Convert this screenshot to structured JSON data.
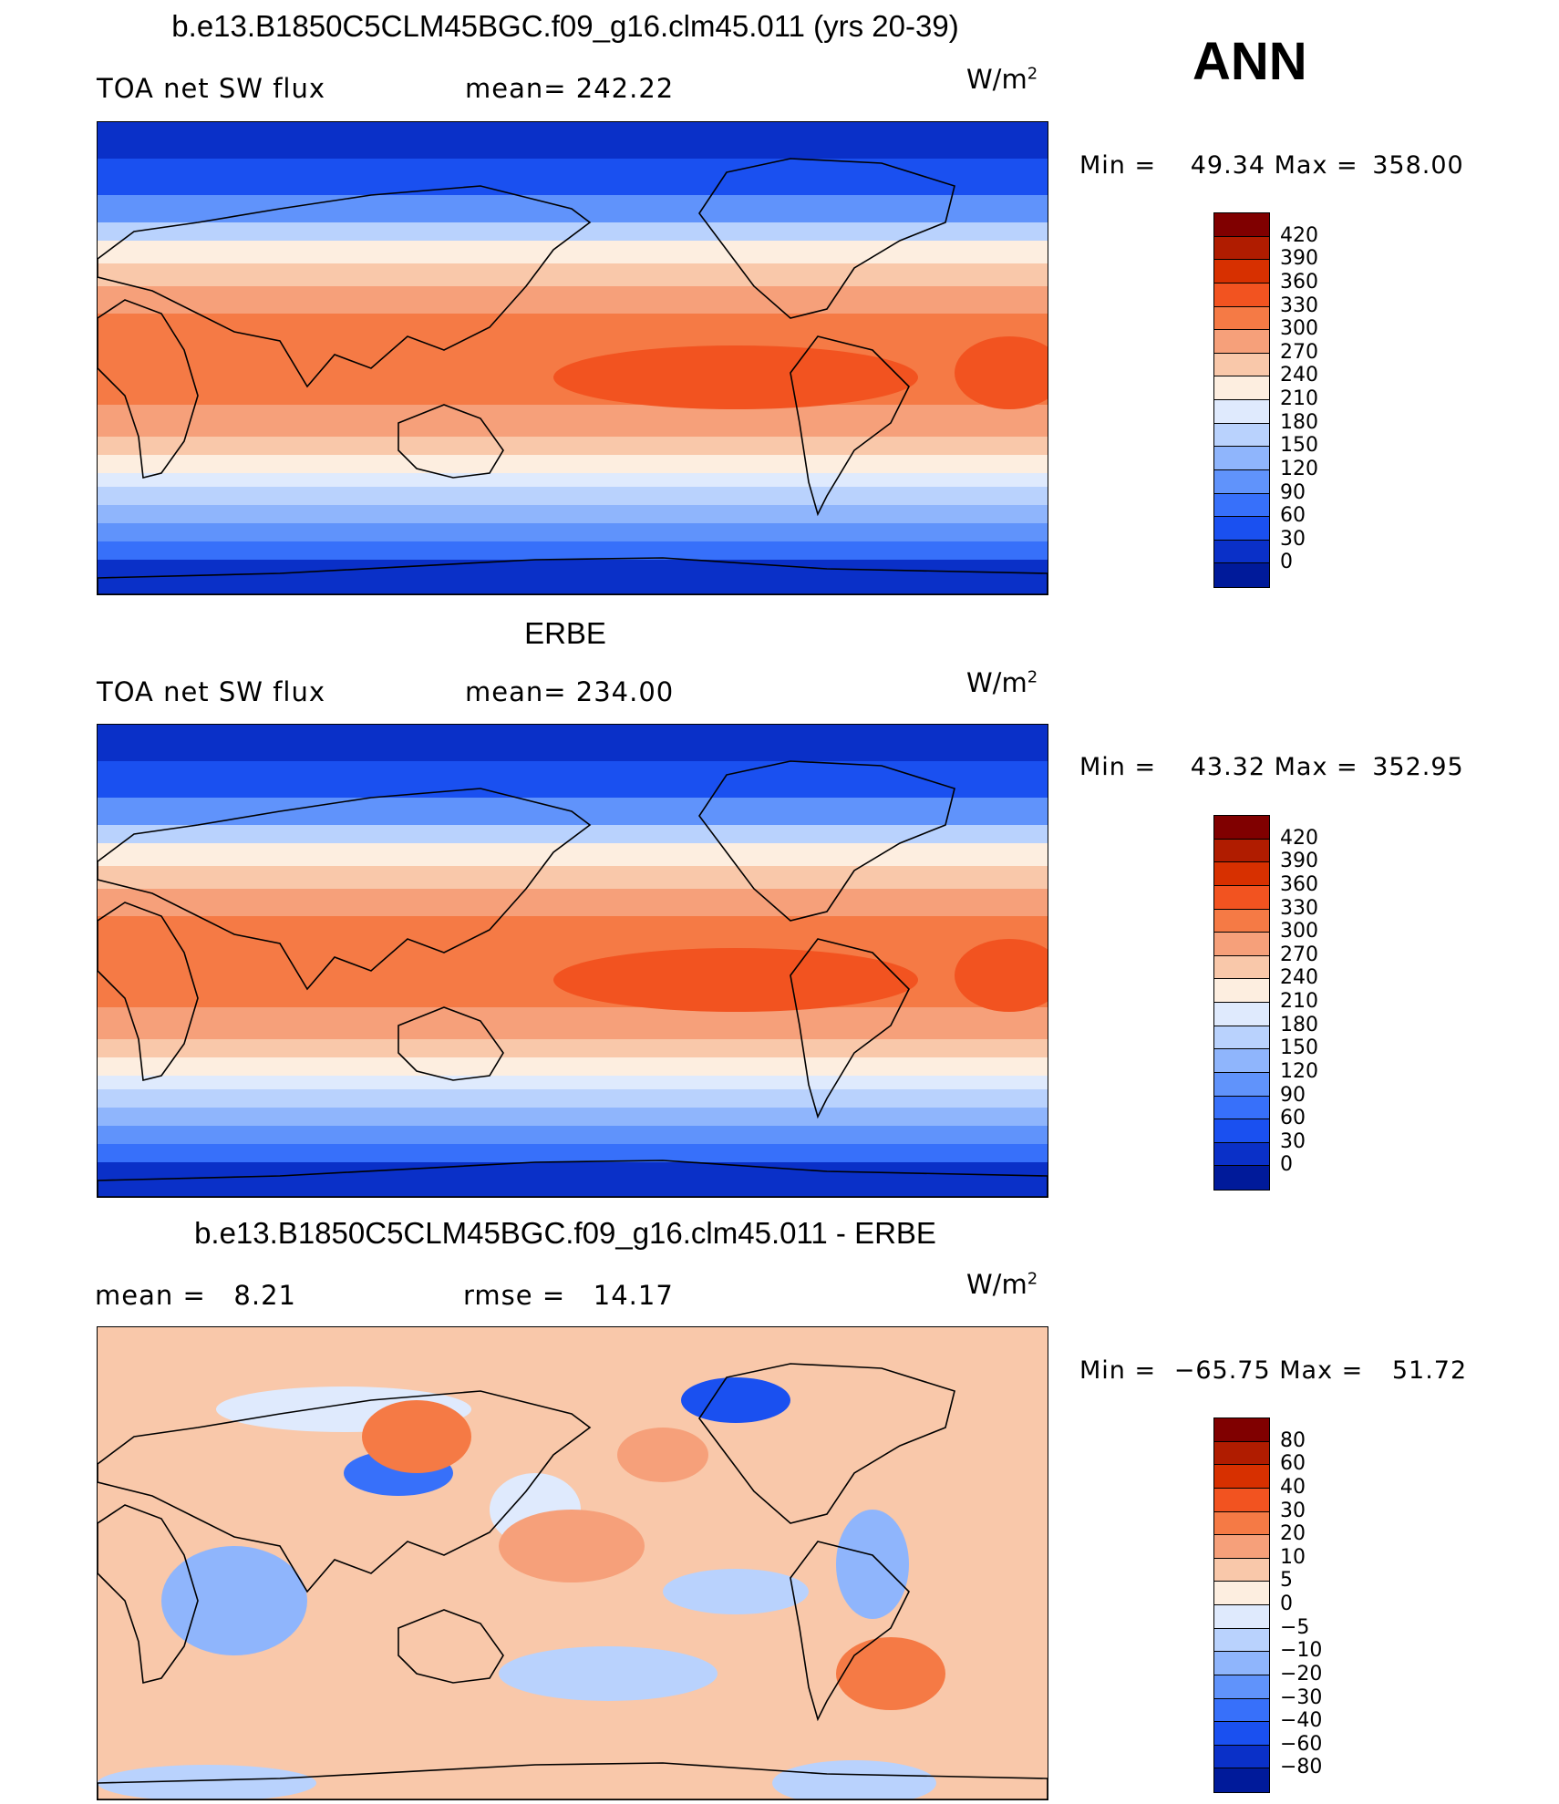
{
  "season": "ANN",
  "units_base": "W/m",
  "units_exp": "2",
  "panels": [
    {
      "title": "b.e13.B1850C5CLM45BGC.f09_g16.clm45.011 (yrs 20-39)",
      "left_label": "TOA net SW flux",
      "mid_label": "mean= 242.22",
      "min_label": "Min =",
      "min_value": "49.34",
      "max_label": "Max =",
      "max_value": "358.00",
      "levels": [
        "420",
        "390",
        "360",
        "330",
        "300",
        "270",
        "240",
        "210",
        "180",
        "150",
        "120",
        "90",
        "60",
        "30",
        "0"
      ],
      "map_kind": "abs"
    },
    {
      "title": "ERBE",
      "left_label": "TOA net SW flux",
      "mid_label": "mean= 234.00",
      "min_label": "Min =",
      "min_value": "43.32",
      "max_label": "Max =",
      "max_value": "352.95",
      "levels": [
        "420",
        "390",
        "360",
        "330",
        "300",
        "270",
        "240",
        "210",
        "180",
        "150",
        "120",
        "90",
        "60",
        "30",
        "0"
      ],
      "map_kind": "abs"
    },
    {
      "title": "b.e13.B1850C5CLM45BGC.f09_g16.clm45.011 - ERBE",
      "left_label": "mean =   8.21",
      "mid_label": "rmse =   14.17",
      "min_label": "Min =",
      "min_value": "−65.75",
      "max_label": "Max =",
      "max_value": "51.72",
      "levels": [
        "80",
        "60",
        "40",
        "30",
        "20",
        "10",
        "5",
        "0",
        "−5",
        "−10",
        "−20",
        "−30",
        "−40",
        "−60",
        "−80"
      ],
      "map_kind": "diff"
    }
  ],
  "colors": {
    "abs_bins": [
      "#800000",
      "#b01c00",
      "#d73000",
      "#f25320",
      "#f57a45",
      "#f6a07a",
      "#f9c8aa",
      "#fdeee0",
      "#dfeafd",
      "#b9d2fd",
      "#8fb5fc",
      "#6093fb",
      "#3770fa",
      "#1a50f0",
      "#0a30c8",
      "#001a9a"
    ],
    "diff_bins": [
      "#800000",
      "#b01c00",
      "#d73000",
      "#f25320",
      "#f57a45",
      "#f6a07a",
      "#f9c8aa",
      "#fdeee0",
      "#dfeafd",
      "#b9d2fd",
      "#8fb5fc",
      "#6093fb",
      "#3770fa",
      "#1a50f0",
      "#0a30c8",
      "#001a9a"
    ]
  }
}
